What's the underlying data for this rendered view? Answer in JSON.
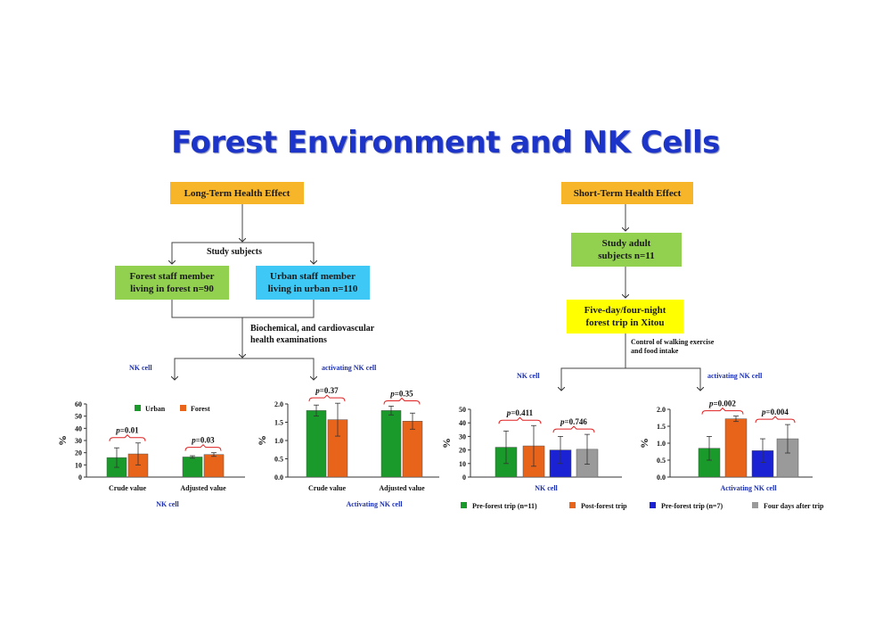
{
  "title": "Forest Environment and NK Cells",
  "colors": {
    "title": "#1c34c8",
    "orange_box": "#f7b52a",
    "green_box": "#92d050",
    "cyan_box": "#3dc8f5",
    "yellow_box": "#ffff00",
    "urban": "#1a9a2a",
    "forest": "#e8641b",
    "blue": "#1a22d4",
    "gray": "#9a9a9a",
    "bracket": "#e02020"
  },
  "left": {
    "header": "Long-Term Health Effect",
    "study_subjects": "Study subjects",
    "forest_group": "Forest staff member\nliving in forest  n=90",
    "urban_group": "Urban staff member\nliving in urban  n=110",
    "exams": "Biochemical, and cardiovascular\nhealth examinations",
    "nk_label": "NK cell",
    "ank_label": "activating NK cell"
  },
  "right": {
    "header": "Short-Term Health Effect",
    "subjects": "Study adult\nsubjects  n=11",
    "trip": "Five-day/four-night\nforest trip in Xitou",
    "control": "Control of walking exercise\nand food intake",
    "nk_label": "NK cell",
    "ank_label": "activating NK cell"
  },
  "chart_data": [
    {
      "type": "bar",
      "categories": [
        "Crude value",
        "Adjusted value"
      ],
      "series": [
        {
          "name": "Urban",
          "values": [
            16,
            16.5
          ],
          "err": [
            8,
            1
          ]
        },
        {
          "name": "Forest",
          "values": [
            19,
            18.5
          ],
          "err": [
            9,
            1.5
          ]
        }
      ],
      "ylabel": "%",
      "xlabel": "NK cell",
      "ylim": [
        0,
        60
      ],
      "yticks": [
        "0",
        "10",
        "20",
        "30",
        "40",
        "50",
        "60"
      ],
      "annotations": [
        "p=0.01",
        "p=0.03"
      ],
      "legend": "top"
    },
    {
      "type": "bar",
      "categories": [
        "Crude value",
        "Adjusted value"
      ],
      "series": [
        {
          "name": "Urban",
          "values": [
            1.82,
            1.82
          ],
          "err": [
            0.15,
            0.12
          ]
        },
        {
          "name": "Forest",
          "values": [
            1.57,
            1.53
          ],
          "err": [
            0.45,
            0.22
          ]
        }
      ],
      "ylabel": "%",
      "xlabel": "Activating NK cell",
      "ylim": [
        0,
        2.0
      ],
      "yticks": [
        "0.0",
        "0.5",
        "1.0",
        "1.5",
        "2.0"
      ],
      "annotations": [
        "p=0.37",
        "p=0.35"
      ]
    },
    {
      "type": "bar",
      "categories": [
        "Pre-forest trip (n=11)",
        "Post-forest trip",
        "Pre-forest trip (n=7)",
        "Four days after trip"
      ],
      "values": [
        22,
        23,
        20,
        20.5
      ],
      "err": [
        12,
        15,
        10,
        11
      ],
      "ylabel": "%",
      "xlabel": "NK cell",
      "ylim": [
        0,
        50
      ],
      "yticks": [
        "0",
        "10",
        "20",
        "30",
        "40",
        "50"
      ],
      "annotations": [
        "p=0.411",
        "p=0.746"
      ]
    },
    {
      "type": "bar",
      "categories": [
        "Pre-forest trip (n=11)",
        "Post-forest trip",
        "Pre-forest trip (n=7)",
        "Four days after trip"
      ],
      "values": [
        0.85,
        1.72,
        0.78,
        1.13
      ],
      "err": [
        0.35,
        0.08,
        0.35,
        0.42
      ],
      "ylabel": "%",
      "xlabel": "Activating NK cell",
      "ylim": [
        0,
        2.0
      ],
      "yticks": [
        "0.0",
        "0.5",
        "1.0",
        "1.5",
        "2.0"
      ],
      "annotations": [
        "p=0.002",
        "p=0.004"
      ],
      "legend": "bottom"
    }
  ]
}
